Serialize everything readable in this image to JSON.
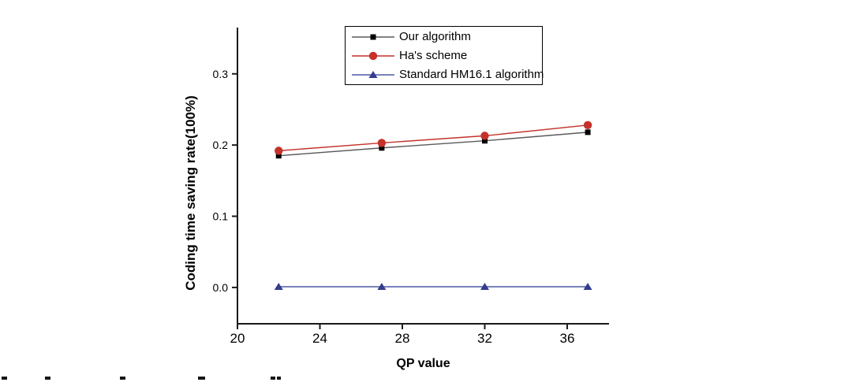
{
  "chart_data": {
    "type": "line",
    "title": "",
    "xlabel": "QP value",
    "ylabel": "Coding time saving rate(100%)",
    "x": [
      22,
      27,
      32,
      37
    ],
    "series": [
      {
        "name": "Our algorithm",
        "marker": "square",
        "marker_color": "#000000",
        "line_color": "#5a5a5a",
        "values": [
          0.185,
          0.196,
          0.206,
          0.218
        ]
      },
      {
        "name": "Ha's scheme",
        "marker": "circle",
        "marker_color": "#c4322b",
        "line_color": "#c4322b",
        "values": [
          0.192,
          0.203,
          0.213,
          0.228
        ]
      },
      {
        "name": "Standard HM16.1 algorithm",
        "marker": "triangle",
        "marker_color": "#343d8d",
        "line_color": "#4e58a6",
        "values": [
          0.001,
          0.001,
          0.001,
          0.001
        ]
      }
    ],
    "x_ticks": [
      "20",
      "24",
      "28",
      "32",
      "36"
    ],
    "x_tick_values": [
      20,
      24,
      28,
      32,
      36
    ],
    "y_ticks": [
      "0.0",
      "0.1",
      "0.2",
      "0.3"
    ],
    "y_tick_values": [
      0.0,
      0.1,
      0.2,
      0.3
    ],
    "xlim": [
      20,
      38.03
    ],
    "ylim": [
      -0.051,
      0.365
    ],
    "grid": false,
    "legend_position": "top-center",
    "axis_color": "#1a1a1a",
    "background": "#ffffff"
  },
  "figure": {
    "bottom_clipped_marks": [
      {
        "x": 2,
        "w": 7
      },
      {
        "x": 57,
        "w": 7
      },
      {
        "x": 152,
        "w": 7
      },
      {
        "x": 251,
        "w": 9
      },
      {
        "x": 343,
        "w": 6
      },
      {
        "x": 351,
        "w": 5
      }
    ]
  }
}
